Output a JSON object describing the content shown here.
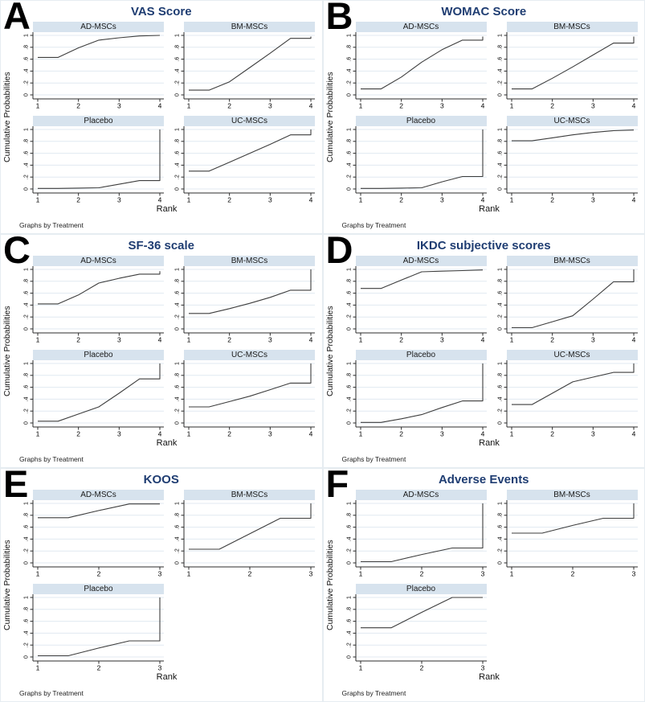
{
  "colors": {
    "title_color": "#1f3d72",
    "header_bg": "#d7e3ee",
    "grid_color": "#e0e9f1",
    "axis_color": "#2b2b2b",
    "line_color": "#3d3d3d"
  },
  "chart_data": [
    {
      "type": "line",
      "letter": "A",
      "title": "VAS Score",
      "xlabel": "Rank",
      "ylabel": "Cumulative Probabilities",
      "note": "Graphs by Treatment",
      "xlim": [
        1,
        4
      ],
      "ylim": [
        0,
        1
      ],
      "x_ticks": [
        1,
        2,
        3,
        4
      ],
      "y_ticks": [
        "0",
        ".2",
        ".4",
        ".6",
        ".8",
        "1"
      ],
      "grid": true,
      "subplots": [
        {
          "treatment": "AD-MSCs",
          "points": [
            [
              1,
              0.63
            ],
            [
              1.5,
              0.63
            ],
            [
              2,
              0.79
            ],
            [
              2.5,
              0.92
            ],
            [
              3,
              0.96
            ],
            [
              3.5,
              0.99
            ],
            [
              4,
              1.0
            ]
          ]
        },
        {
          "treatment": "BM-MSCs",
          "points": [
            [
              1,
              0.08
            ],
            [
              1.5,
              0.08
            ],
            [
              2,
              0.22
            ],
            [
              2.5,
              0.46
            ],
            [
              3,
              0.7
            ],
            [
              3.5,
              0.95
            ],
            [
              4,
              0.95
            ],
            [
              4,
              0.98
            ]
          ]
        },
        {
          "treatment": "Placebo",
          "points": [
            [
              1,
              0.01
            ],
            [
              1.5,
              0.01
            ],
            [
              2,
              0.015
            ],
            [
              2.5,
              0.02
            ],
            [
              3,
              0.08
            ],
            [
              3.5,
              0.14
            ],
            [
              4,
              0.14
            ],
            [
              4,
              1.0
            ]
          ]
        },
        {
          "treatment": "UC-MSCs",
          "points": [
            [
              1,
              0.3
            ],
            [
              1.5,
              0.3
            ],
            [
              2,
              0.45
            ],
            [
              2.5,
              0.6
            ],
            [
              3,
              0.75
            ],
            [
              3.5,
              0.91
            ],
            [
              4,
              0.91
            ],
            [
              4,
              1.0
            ]
          ]
        }
      ]
    },
    {
      "type": "line",
      "letter": "B",
      "title": "WOMAC Score",
      "xlabel": "Rank",
      "ylabel": "Cumulative Probabilities",
      "note": "Graphs by Treatment",
      "xlim": [
        1,
        4
      ],
      "ylim": [
        0,
        1
      ],
      "x_ticks": [
        1,
        2,
        3,
        4
      ],
      "y_ticks": [
        "0",
        ".2",
        ".4",
        ".6",
        ".8",
        "1"
      ],
      "grid": true,
      "subplots": [
        {
          "treatment": "AD-MSCs",
          "points": [
            [
              1,
              0.1
            ],
            [
              1.5,
              0.1
            ],
            [
              2,
              0.3
            ],
            [
              2.5,
              0.55
            ],
            [
              3,
              0.76
            ],
            [
              3.5,
              0.92
            ],
            [
              4,
              0.92
            ],
            [
              4,
              0.98
            ]
          ]
        },
        {
          "treatment": "BM-MSCs",
          "points": [
            [
              1,
              0.1
            ],
            [
              1.5,
              0.1
            ],
            [
              2,
              0.28
            ],
            [
              2.5,
              0.47
            ],
            [
              3,
              0.67
            ],
            [
              3.5,
              0.87
            ],
            [
              4,
              0.87
            ],
            [
              4,
              0.98
            ]
          ]
        },
        {
          "treatment": "Placebo",
          "points": [
            [
              1,
              0.01
            ],
            [
              1.5,
              0.01
            ],
            [
              2,
              0.015
            ],
            [
              2.5,
              0.02
            ],
            [
              3,
              0.12
            ],
            [
              3.5,
              0.21
            ],
            [
              4,
              0.21
            ],
            [
              4,
              1.0
            ]
          ]
        },
        {
          "treatment": "UC-MSCs",
          "points": [
            [
              1,
              0.81
            ],
            [
              1.5,
              0.81
            ],
            [
              2,
              0.86
            ],
            [
              2.5,
              0.91
            ],
            [
              3,
              0.95
            ],
            [
              3.5,
              0.98
            ],
            [
              4,
              0.99
            ]
          ]
        }
      ]
    },
    {
      "type": "line",
      "letter": "C",
      "title": "SF-36 scale",
      "xlabel": "Rank",
      "ylabel": "Cumulative Probabilities",
      "note": "Graphs by Treatment",
      "xlim": [
        1,
        4
      ],
      "ylim": [
        0,
        1
      ],
      "x_ticks": [
        1,
        2,
        3,
        4
      ],
      "y_ticks": [
        "0",
        ".2",
        ".4",
        ".6",
        ".8",
        "1"
      ],
      "grid": true,
      "subplots": [
        {
          "treatment": "AD-MSCs",
          "points": [
            [
              1,
              0.42
            ],
            [
              1.5,
              0.42
            ],
            [
              2,
              0.57
            ],
            [
              2.5,
              0.77
            ],
            [
              3,
              0.85
            ],
            [
              3.5,
              0.92
            ],
            [
              4,
              0.92
            ],
            [
              4,
              0.97
            ]
          ]
        },
        {
          "treatment": "BM-MSCs",
          "points": [
            [
              1,
              0.26
            ],
            [
              1.5,
              0.26
            ],
            [
              2,
              0.34
            ],
            [
              2.5,
              0.43
            ],
            [
              3,
              0.53
            ],
            [
              3.5,
              0.65
            ],
            [
              4,
              0.65
            ],
            [
              4,
              1.0
            ]
          ]
        },
        {
          "treatment": "Placebo",
          "points": [
            [
              1,
              0.03
            ],
            [
              1.5,
              0.03
            ],
            [
              2,
              0.15
            ],
            [
              2.5,
              0.27
            ],
            [
              3,
              0.5
            ],
            [
              3.5,
              0.74
            ],
            [
              4,
              0.74
            ],
            [
              4,
              1.0
            ]
          ]
        },
        {
          "treatment": "UC-MSCs",
          "points": [
            [
              1,
              0.27
            ],
            [
              1.5,
              0.27
            ],
            [
              2,
              0.36
            ],
            [
              2.5,
              0.45
            ],
            [
              3,
              0.56
            ],
            [
              3.5,
              0.67
            ],
            [
              4,
              0.67
            ],
            [
              4,
              1.0
            ]
          ]
        }
      ]
    },
    {
      "type": "line",
      "letter": "D",
      "title": "IKDC subjective scores",
      "xlabel": "Rank",
      "ylabel": "Cumulative Probabilities",
      "note": "Graphs by Treatment",
      "xlim": [
        1,
        4
      ],
      "ylim": [
        0,
        1
      ],
      "x_ticks": [
        1,
        2,
        3,
        4
      ],
      "y_ticks": [
        "0",
        ".2",
        ".4",
        ".6",
        ".8",
        "1"
      ],
      "grid": true,
      "subplots": [
        {
          "treatment": "AD-MSCs",
          "points": [
            [
              1,
              0.68
            ],
            [
              1.5,
              0.68
            ],
            [
              2,
              0.82
            ],
            [
              2.5,
              0.96
            ],
            [
              3,
              0.97
            ],
            [
              3.5,
              0.98
            ],
            [
              4,
              0.99
            ]
          ]
        },
        {
          "treatment": "BM-MSCs",
          "points": [
            [
              1,
              0.02
            ],
            [
              1.5,
              0.02
            ],
            [
              2,
              0.12
            ],
            [
              2.5,
              0.22
            ],
            [
              3,
              0.5
            ],
            [
              3.5,
              0.79
            ],
            [
              4,
              0.79
            ],
            [
              4,
              1.0
            ]
          ]
        },
        {
          "treatment": "Placebo",
          "points": [
            [
              1,
              0.01
            ],
            [
              1.5,
              0.01
            ],
            [
              2,
              0.07
            ],
            [
              2.5,
              0.14
            ],
            [
              3,
              0.26
            ],
            [
              3.5,
              0.37
            ],
            [
              4,
              0.37
            ],
            [
              4,
              1.0
            ]
          ]
        },
        {
          "treatment": "UC-MSCs",
          "points": [
            [
              1,
              0.31
            ],
            [
              1.5,
              0.31
            ],
            [
              2,
              0.5
            ],
            [
              2.5,
              0.69
            ],
            [
              3,
              0.77
            ],
            [
              3.5,
              0.85
            ],
            [
              4,
              0.85
            ],
            [
              4,
              1.0
            ]
          ]
        }
      ]
    },
    {
      "type": "line",
      "letter": "E",
      "title": "KOOS",
      "xlabel": "Rank",
      "ylabel": "Cumulative Probabilities",
      "note": "Graphs by Treatment",
      "xlim": [
        1,
        3
      ],
      "ylim": [
        0,
        1
      ],
      "x_ticks": [
        1,
        2,
        3
      ],
      "y_ticks": [
        "0",
        ".2",
        ".4",
        ".6",
        ".8",
        "1"
      ],
      "grid": true,
      "subplots": [
        {
          "treatment": "AD-MSCs",
          "points": [
            [
              1,
              0.76
            ],
            [
              1.5,
              0.76
            ],
            [
              2,
              0.88
            ],
            [
              2.5,
              0.99
            ],
            [
              3,
              0.99
            ]
          ]
        },
        {
          "treatment": "BM-MSCs",
          "points": [
            [
              1,
              0.23
            ],
            [
              1.5,
              0.23
            ],
            [
              2,
              0.49
            ],
            [
              2.5,
              0.75
            ],
            [
              3,
              0.75
            ],
            [
              3,
              1.0
            ]
          ]
        },
        {
          "treatment": "Placebo",
          "points": [
            [
              1,
              0.02
            ],
            [
              1.5,
              0.02
            ],
            [
              2,
              0.15
            ],
            [
              2.5,
              0.27
            ],
            [
              3,
              0.27
            ],
            [
              3,
              1.0
            ]
          ]
        }
      ]
    },
    {
      "type": "line",
      "letter": "F",
      "title": "Adverse Events",
      "xlabel": "Rank",
      "ylabel": "Cumulative Probabilities",
      "note": "Graphs by Treatment",
      "xlim": [
        1,
        3
      ],
      "ylim": [
        0,
        1
      ],
      "x_ticks": [
        1,
        2,
        3
      ],
      "y_ticks": [
        "0",
        ".2",
        ".4",
        ".6",
        ".8",
        "1"
      ],
      "grid": true,
      "subplots": [
        {
          "treatment": "AD-MSCs",
          "points": [
            [
              1,
              0.02
            ],
            [
              1.5,
              0.02
            ],
            [
              2,
              0.14
            ],
            [
              2.5,
              0.25
            ],
            [
              3,
              0.25
            ],
            [
              3,
              1.0
            ]
          ]
        },
        {
          "treatment": "BM-MSCs",
          "points": [
            [
              1,
              0.5
            ],
            [
              1.5,
              0.5
            ],
            [
              2,
              0.63
            ],
            [
              2.5,
              0.75
            ],
            [
              3,
              0.75
            ],
            [
              3,
              1.0
            ]
          ]
        },
        {
          "treatment": "Placebo",
          "points": [
            [
              1,
              0.49
            ],
            [
              1.5,
              0.49
            ],
            [
              2,
              0.75
            ],
            [
              2.5,
              1.0
            ],
            [
              3,
              1.0
            ]
          ]
        }
      ]
    }
  ]
}
